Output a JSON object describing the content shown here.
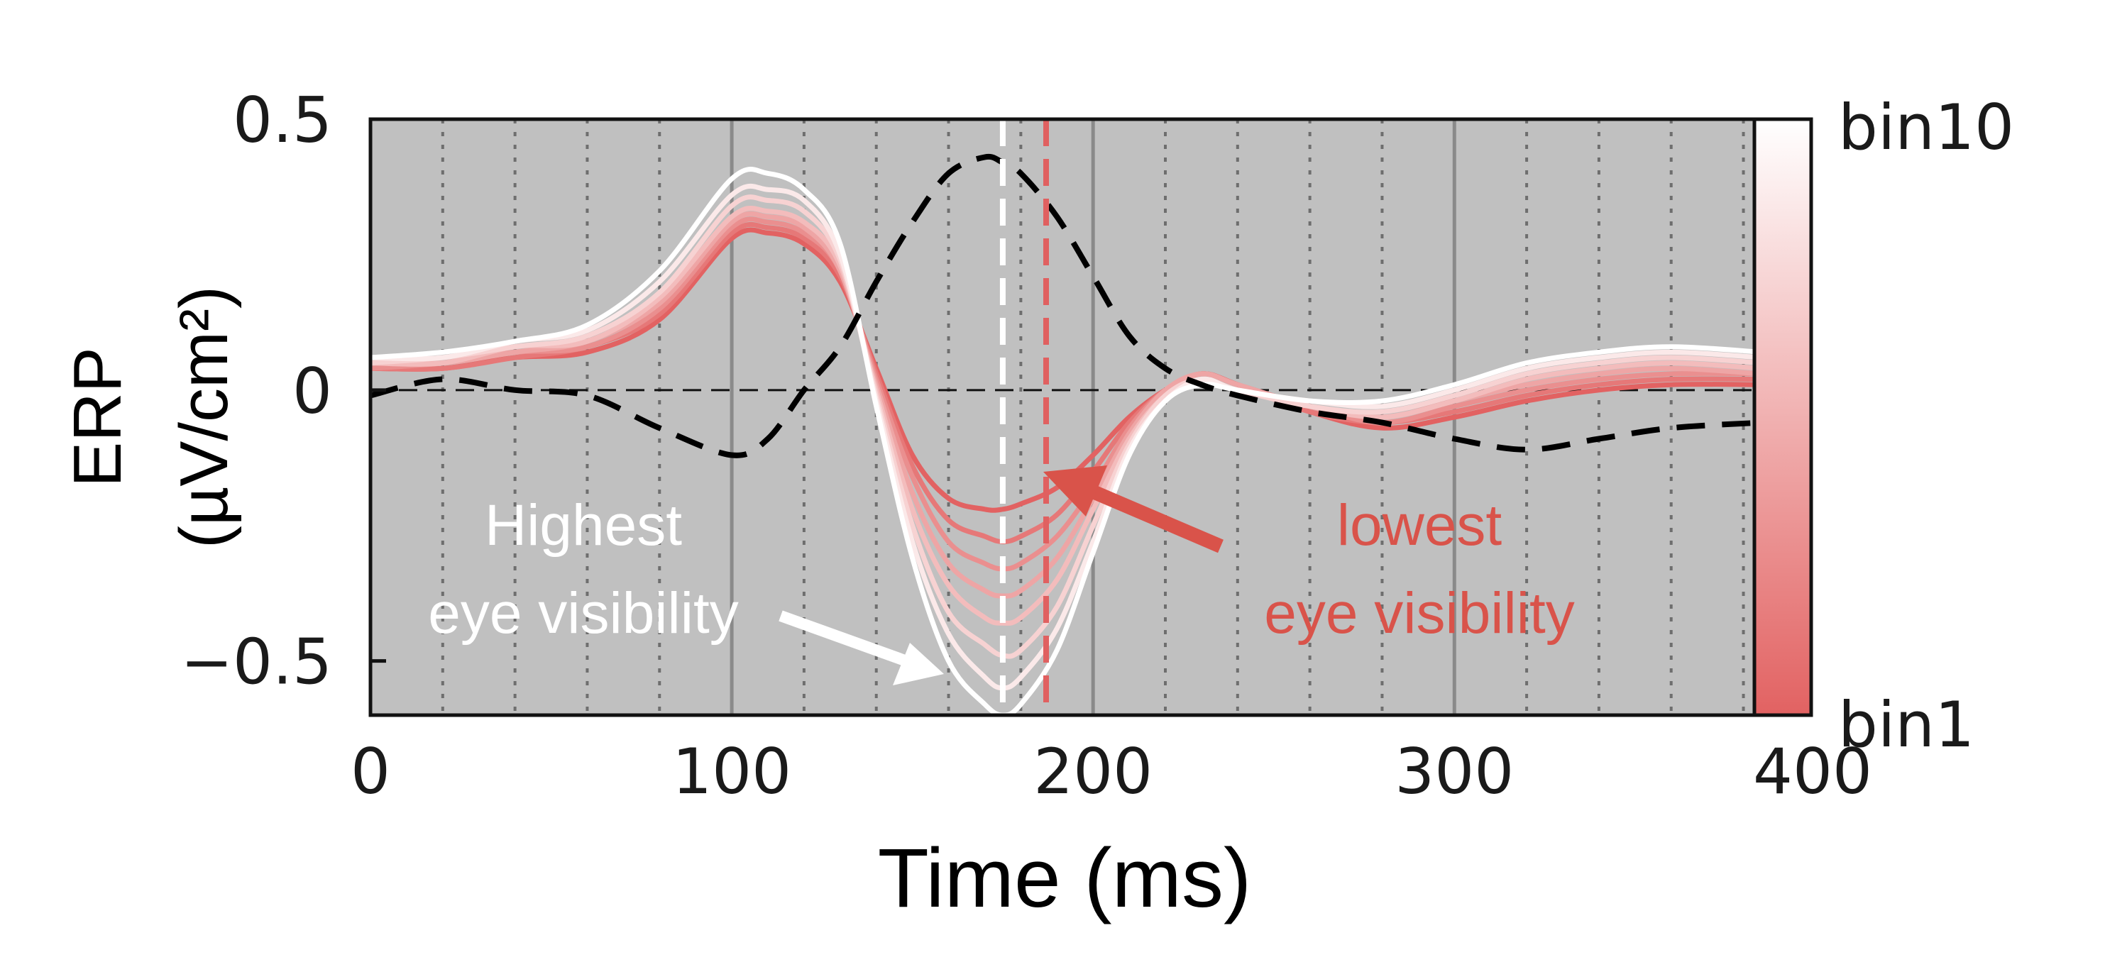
{
  "chart_data": {
    "type": "line",
    "title": "",
    "xlabel": "Time (ms)",
    "ylabel_line1": "ERP",
    "ylabel_line2": "(µV/cm²)",
    "xlim": [
      0,
      385
    ],
    "ylim": [
      -0.6,
      0.5
    ],
    "x_ticks": [
      0,
      100,
      200,
      300,
      400
    ],
    "x_tick_labels": [
      "0",
      "100",
      "200",
      "300",
      "400"
    ],
    "y_ticks": [
      0.5,
      0,
      -0.5
    ],
    "y_tick_labels": [
      "0.5",
      "0",
      "−0.5"
    ],
    "grid": true,
    "background": "#c0c0c0",
    "zero_line": true,
    "colorbar": {
      "top_label": "bin10",
      "bottom_label": "bin1",
      "colors": [
        "#ffffff",
        "#e26262"
      ]
    },
    "vlines": [
      {
        "x": 175,
        "color": "#ffffff",
        "style": "dashed"
      },
      {
        "x": 187,
        "color": "#e06060",
        "style": "dashed"
      }
    ],
    "x": [
      0,
      20,
      40,
      60,
      80,
      100,
      110,
      120,
      130,
      140,
      150,
      160,
      170,
      175,
      180,
      190,
      200,
      210,
      220,
      230,
      240,
      260,
      280,
      300,
      320,
      340,
      360,
      385
    ],
    "series": [
      {
        "values": [
          0.04,
          0.04,
          0.06,
          0.07,
          0.13,
          0.28,
          0.29,
          0.27,
          0.2,
          0.04,
          -0.12,
          -0.2,
          -0.22,
          -0.22,
          -0.21,
          -0.18,
          -0.12,
          -0.05,
          0.0,
          0.03,
          0.01,
          -0.04,
          -0.07,
          -0.05,
          -0.02,
          0.0,
          0.01,
          0.01
        ]
      },
      {
        "values": [
          0.04,
          0.04,
          0.06,
          0.08,
          0.14,
          0.29,
          0.3,
          0.28,
          0.21,
          0.03,
          -0.14,
          -0.24,
          -0.27,
          -0.28,
          -0.27,
          -0.23,
          -0.15,
          -0.06,
          0.0,
          0.03,
          0.01,
          -0.04,
          -0.06,
          -0.04,
          -0.01,
          0.01,
          0.02,
          0.02
        ]
      },
      {
        "values": [
          0.04,
          0.05,
          0.07,
          0.08,
          0.15,
          0.3,
          0.31,
          0.29,
          0.22,
          0.02,
          -0.16,
          -0.28,
          -0.32,
          -0.33,
          -0.32,
          -0.27,
          -0.18,
          -0.07,
          0.0,
          0.03,
          0.01,
          -0.03,
          -0.06,
          -0.03,
          0.0,
          0.02,
          0.03,
          0.03
        ]
      },
      {
        "values": [
          0.05,
          0.05,
          0.07,
          0.09,
          0.16,
          0.31,
          0.32,
          0.3,
          0.22,
          0.01,
          -0.19,
          -0.32,
          -0.37,
          -0.38,
          -0.37,
          -0.31,
          -0.2,
          -0.08,
          0.0,
          0.03,
          0.01,
          -0.03,
          -0.05,
          -0.02,
          0.01,
          0.03,
          0.04,
          0.03
        ]
      },
      {
        "values": [
          0.05,
          0.05,
          0.08,
          0.09,
          0.17,
          0.32,
          0.33,
          0.31,
          0.23,
          0.0,
          -0.22,
          -0.36,
          -0.42,
          -0.43,
          -0.42,
          -0.35,
          -0.22,
          -0.09,
          -0.01,
          0.02,
          0.0,
          -0.03,
          -0.05,
          -0.02,
          0.02,
          0.04,
          0.05,
          0.04
        ]
      },
      {
        "values": [
          0.05,
          0.06,
          0.08,
          0.1,
          0.18,
          0.34,
          0.35,
          0.33,
          0.24,
          -0.01,
          -0.25,
          -0.41,
          -0.47,
          -0.49,
          -0.48,
          -0.4,
          -0.25,
          -0.1,
          -0.01,
          0.02,
          0.0,
          -0.03,
          -0.04,
          -0.01,
          0.03,
          0.05,
          0.06,
          0.05
        ]
      },
      {
        "values": [
          0.06,
          0.06,
          0.09,
          0.11,
          0.2,
          0.36,
          0.37,
          0.35,
          0.25,
          -0.02,
          -0.28,
          -0.45,
          -0.53,
          -0.55,
          -0.53,
          -0.44,
          -0.28,
          -0.11,
          -0.02,
          0.02,
          0.0,
          -0.02,
          -0.03,
          0.0,
          0.04,
          0.06,
          0.07,
          0.06
        ]
      },
      {
        "values": [
          0.06,
          0.07,
          0.09,
          0.12,
          0.22,
          0.39,
          0.4,
          0.37,
          0.27,
          -0.03,
          -0.31,
          -0.5,
          -0.58,
          -0.6,
          -0.58,
          -0.48,
          -0.3,
          -0.12,
          -0.02,
          0.01,
          0.0,
          -0.02,
          -0.02,
          0.01,
          0.05,
          0.07,
          0.08,
          0.07
        ]
      }
    ],
    "dashed_series": {
      "color": "#000000",
      "values": [
        -0.01,
        0.02,
        0.0,
        -0.01,
        -0.07,
        -0.12,
        -0.09,
        0.0,
        0.08,
        0.2,
        0.31,
        0.4,
        0.43,
        0.42,
        0.4,
        0.32,
        0.21,
        0.1,
        0.04,
        0.01,
        -0.01,
        -0.04,
        -0.06,
        -0.09,
        -0.11,
        -0.09,
        -0.07,
        -0.06
      ]
    },
    "annotations": [
      {
        "line1": "Highest",
        "line2": "eye visibility",
        "color": "#ffffff"
      },
      {
        "line1": "lowest",
        "line2": "eye visibility",
        "color": "#d9534a"
      }
    ]
  }
}
